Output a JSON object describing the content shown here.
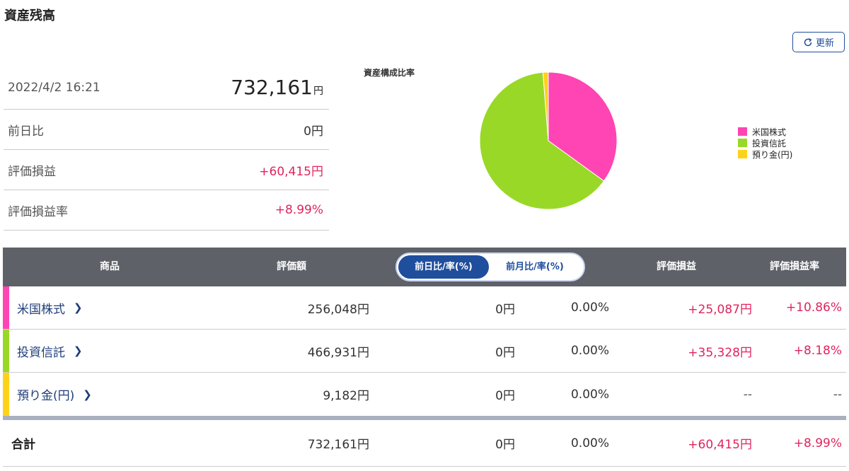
{
  "page_title": "資産残高",
  "refresh_label": "更新",
  "summary": {
    "datetime": "2022/4/2 16:21",
    "total_value": "732,161",
    "total_unit": "円",
    "rows": [
      {
        "label": "前日比",
        "value": "0円",
        "tone": "neutral"
      },
      {
        "label": "評価損益",
        "value": "+60,415円",
        "tone": "positive"
      },
      {
        "label": "評価損益率",
        "value": "+8.99%",
        "tone": "positive"
      }
    ]
  },
  "chart_data": {
    "type": "pie",
    "title": "資産構成比率",
    "categories": [
      "米国株式",
      "投資信託",
      "預り金(円)"
    ],
    "values": [
      256048,
      466931,
      9182
    ],
    "colors": [
      "#ff44b4",
      "#9ad827",
      "#ffd21a"
    ],
    "legend_position": "right"
  },
  "table": {
    "headers": {
      "product": "商品",
      "valuation": "評価額",
      "toggle_daily": "前日比/率(%)",
      "toggle_monthly": "前月比/率(%)",
      "pl": "評価損益",
      "pl_rate": "評価損益率"
    },
    "rows": [
      {
        "name": "米国株式",
        "color": "#ff44b4",
        "valuation": "256,048円",
        "diff": "0円",
        "diff_rate": "0.00%",
        "pl": "+25,087円",
        "pl_rate": "+10.86%"
      },
      {
        "name": "投資信託",
        "color": "#9ad827",
        "valuation": "466,931円",
        "diff": "0円",
        "diff_rate": "0.00%",
        "pl": "+35,328円",
        "pl_rate": "+8.18%"
      },
      {
        "name": "預り金(円)",
        "color": "#ffd21a",
        "valuation": "9,182円",
        "diff": "0円",
        "diff_rate": "0.00%",
        "pl": "--",
        "pl_rate": "--"
      }
    ],
    "total": {
      "label": "合計",
      "valuation": "732,161円",
      "diff": "0円",
      "diff_rate": "0.00%",
      "pl": "+60,415円",
      "pl_rate": "+8.99%"
    }
  }
}
